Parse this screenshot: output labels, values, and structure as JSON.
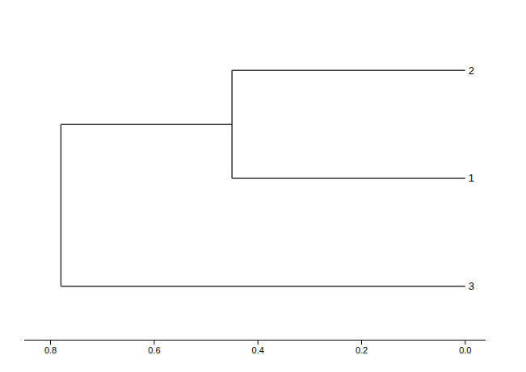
{
  "chart_data": {
    "type": "dendrogram",
    "categories": [
      "2",
      "1",
      "3"
    ],
    "merges": [
      {
        "members": [
          "2",
          "1"
        ],
        "distance": 0.45
      },
      {
        "members": [
          [
            "2",
            "1"
          ],
          "3"
        ],
        "distance": 0.78
      }
    ],
    "xlim": [
      0.85,
      -0.04
    ],
    "xticks": [
      0.8,
      0.6,
      0.4,
      0.2,
      {
        "value": 0,
        "label": "0.0"
      }
    ],
    "tick_labels": "x",
    "color": "#333333"
  }
}
